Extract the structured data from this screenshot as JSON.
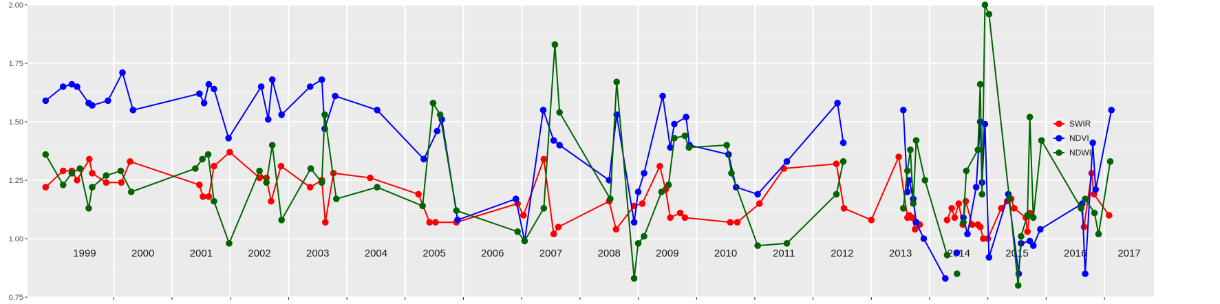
{
  "chart_data": {
    "type": "line",
    "title": "",
    "xlabel": "",
    "ylabel": "",
    "xlim": [
      1998.52,
      2017.85
    ],
    "ylim": [
      0.75,
      2.0
    ],
    "yticks": [
      "0.75",
      "1.00",
      "1.25",
      "1.50",
      "1.75",
      "2.00"
    ],
    "year_labels": [
      "1999",
      "2000",
      "2001",
      "2002",
      "2003",
      "2004",
      "2005",
      "2006",
      "2007",
      "2008",
      "2009",
      "2010",
      "2011",
      "2012",
      "2013",
      "2014",
      "2015",
      "2016",
      "2017"
    ],
    "grid": true,
    "legend_position": "right",
    "series": [
      {
        "name": "SWIR",
        "color": "#ff0000",
        "segments": [
          [
            [
              1998.83,
              1.22
            ],
            [
              1999.13,
              1.29
            ],
            [
              1999.28,
              1.29
            ],
            [
              1999.37,
              1.25
            ],
            [
              1999.58,
              1.34
            ],
            [
              1999.63,
              1.28
            ],
            [
              1999.87,
              1.24
            ],
            [
              2000.13,
              1.24
            ],
            [
              2000.28,
              1.33
            ],
            [
              2001.47,
              1.23
            ],
            [
              2001.53,
              1.18
            ],
            [
              2001.63,
              1.18
            ],
            [
              2001.72,
              1.31
            ],
            [
              2001.99,
              1.37
            ],
            [
              2002.5,
              1.26
            ],
            [
              2002.62,
              1.26
            ],
            [
              2002.7,
              1.16
            ],
            [
              2002.87,
              1.31
            ],
            [
              2003.37,
              1.22
            ],
            [
              2003.57,
              1.25
            ],
            [
              2003.63,
              1.07
            ],
            [
              2003.77,
              1.28
            ],
            [
              2004.4,
              1.26
            ],
            [
              2005.23,
              1.19
            ],
            [
              2005.42,
              1.07
            ],
            [
              2005.52,
              1.07
            ],
            [
              2005.88,
              1.07
            ],
            [
              2006.93,
              1.15
            ],
            [
              2007.03,
              1.1
            ],
            [
              2007.38,
              1.34
            ],
            [
              2007.55,
              1.02
            ],
            [
              2007.63,
              1.05
            ],
            [
              2008.5,
              1.16
            ],
            [
              2008.62,
              1.04
            ],
            [
              2008.93,
              1.14
            ],
            [
              2009.07,
              1.15
            ],
            [
              2009.37,
              1.31
            ],
            [
              2009.47,
              1.21
            ],
            [
              2009.55,
              1.09
            ],
            [
              2009.72,
              1.11
            ],
            [
              2009.8,
              1.09
            ],
            [
              2010.58,
              1.07
            ],
            [
              2010.7,
              1.07
            ],
            [
              2011.08,
              1.15
            ],
            [
              2011.5,
              1.3
            ],
            [
              2012.4,
              1.32
            ],
            [
              2012.53,
              1.13
            ],
            [
              2013.0,
              1.08
            ],
            [
              2013.47,
              1.35
            ],
            [
              2013.62,
              1.09
            ],
            [
              2013.65,
              1.1
            ],
            [
              2013.7,
              1.09
            ],
            [
              2013.75,
              1.04
            ],
            [
              2013.83,
              1.06
            ]
          ],
          [
            [
              2014.3,
              1.08
            ],
            [
              2014.38,
              1.13
            ],
            [
              2014.43,
              1.09
            ],
            [
              2014.5,
              1.15
            ],
            [
              2014.57,
              1.06
            ],
            [
              2014.62,
              1.16
            ],
            [
              2014.73,
              1.06
            ],
            [
              2014.83,
              1.06
            ],
            [
              2014.87,
              1.05
            ],
            [
              2014.92,
              1.0
            ],
            [
              2015.0,
              1.0
            ],
            [
              2015.23,
              1.13
            ],
            [
              2015.33,
              1.16
            ],
            [
              2015.4,
              1.17
            ],
            [
              2015.45,
              1.13
            ],
            [
              2015.65,
              1.09
            ],
            [
              2015.68,
              1.03
            ],
            [
              2015.72,
              1.11
            ]
          ],
          [
            [
              2016.6,
              1.14
            ],
            [
              2016.65,
              1.05
            ],
            [
              2016.78,
              1.28
            ],
            [
              2016.82,
              1.19
            ],
            [
              2017.08,
              1.1
            ]
          ]
        ]
      },
      {
        "name": "NDVI",
        "color": "#0000ff",
        "segments": [
          [
            [
              1998.83,
              1.59
            ],
            [
              1999.13,
              1.65
            ],
            [
              1999.28,
              1.66
            ],
            [
              1999.37,
              1.65
            ],
            [
              1999.57,
              1.58
            ],
            [
              1999.63,
              1.57
            ],
            [
              1999.9,
              1.59
            ],
            [
              2000.15,
              1.71
            ],
            [
              2000.33,
              1.55
            ],
            [
              2001.47,
              1.62
            ],
            [
              2001.55,
              1.58
            ],
            [
              2001.63,
              1.66
            ],
            [
              2001.72,
              1.64
            ],
            [
              2001.97,
              1.43
            ],
            [
              2002.53,
              1.65
            ],
            [
              2002.65,
              1.51
            ],
            [
              2002.72,
              1.68
            ],
            [
              2002.88,
              1.53
            ],
            [
              2003.37,
              1.65
            ],
            [
              2003.57,
              1.68
            ],
            [
              2003.62,
              1.47
            ],
            [
              2003.8,
              1.61
            ],
            [
              2004.52,
              1.55
            ],
            [
              2005.32,
              1.34
            ],
            [
              2005.55,
              1.46
            ],
            [
              2005.63,
              1.51
            ],
            [
              2005.9,
              1.08
            ],
            [
              2006.9,
              1.17
            ],
            [
              2007.05,
              0.99
            ],
            [
              2007.37,
              1.55
            ],
            [
              2007.55,
              1.42
            ],
            [
              2007.65,
              1.4
            ],
            [
              2008.5,
              1.25
            ],
            [
              2008.63,
              1.53
            ],
            [
              2008.93,
              1.07
            ],
            [
              2009.0,
              1.2
            ],
            [
              2009.1,
              1.28
            ],
            [
              2009.42,
              1.61
            ],
            [
              2009.55,
              1.39
            ],
            [
              2009.62,
              1.49
            ],
            [
              2009.82,
              1.52
            ],
            [
              2009.88,
              1.4
            ],
            [
              2010.55,
              1.36
            ],
            [
              2010.68,
              1.22
            ],
            [
              2011.05,
              1.19
            ],
            [
              2011.55,
              1.33
            ],
            [
              2012.42,
              1.58
            ],
            [
              2012.52,
              1.41
            ]
          ],
          [
            [
              2013.55,
              1.55
            ],
            [
              2013.62,
              1.2
            ],
            [
              2013.65,
              1.25
            ],
            [
              2013.72,
              1.17
            ],
            [
              2013.77,
              1.07
            ],
            [
              2013.9,
              1.0
            ],
            [
              2014.27,
              0.83
            ]
          ],
          [
            [
              2014.47,
              0.94
            ]
          ],
          [
            [
              2014.58,
              1.09
            ],
            [
              2014.65,
              1.02
            ],
            [
              2014.8,
              1.22
            ],
            [
              2014.87,
              1.5
            ],
            [
              2014.9,
              1.24
            ],
            [
              2014.95,
              1.49
            ],
            [
              2015.02,
              0.92
            ],
            [
              2015.35,
              1.19
            ],
            [
              2015.53,
              0.85
            ],
            [
              2015.57,
              0.98
            ],
            [
              2015.72,
              0.99
            ],
            [
              2015.78,
              0.97
            ],
            [
              2015.9,
              1.04
            ],
            [
              2016.62,
              1.15
            ],
            [
              2016.67,
              0.85
            ],
            [
              2016.8,
              1.41
            ],
            [
              2016.85,
              1.21
            ],
            [
              2017.12,
              1.55
            ]
          ]
        ]
      },
      {
        "name": "NDWI",
        "color": "#006400",
        "segments": [
          [
            [
              1998.83,
              1.36
            ],
            [
              1999.13,
              1.23
            ],
            [
              1999.28,
              1.28
            ],
            [
              1999.42,
              1.3
            ],
            [
              1999.57,
              1.13
            ],
            [
              1999.63,
              1.22
            ],
            [
              1999.87,
              1.27
            ],
            [
              2000.12,
              1.29
            ],
            [
              2000.3,
              1.2
            ],
            [
              2001.4,
              1.3
            ],
            [
              2001.52,
              1.34
            ],
            [
              2001.62,
              1.36
            ],
            [
              2001.72,
              1.16
            ],
            [
              2001.98,
              0.98
            ],
            [
              2002.5,
              1.29
            ],
            [
              2002.62,
              1.24
            ],
            [
              2002.72,
              1.4
            ],
            [
              2002.88,
              1.08
            ],
            [
              2003.38,
              1.3
            ],
            [
              2003.57,
              1.24
            ],
            [
              2003.62,
              1.53
            ],
            [
              2003.82,
              1.17
            ],
            [
              2004.52,
              1.22
            ],
            [
              2005.3,
              1.14
            ],
            [
              2005.48,
              1.58
            ],
            [
              2005.6,
              1.53
            ],
            [
              2005.88,
              1.12
            ],
            [
              2006.93,
              1.03
            ],
            [
              2007.05,
              0.99
            ],
            [
              2007.38,
              1.13
            ],
            [
              2007.57,
              1.83
            ],
            [
              2007.65,
              1.54
            ],
            [
              2008.52,
              1.17
            ],
            [
              2008.63,
              1.67
            ],
            [
              2008.93,
              0.83
            ],
            [
              2009.0,
              0.98
            ],
            [
              2009.1,
              1.01
            ],
            [
              2009.4,
              1.2
            ],
            [
              2009.52,
              1.23
            ],
            [
              2009.62,
              1.43
            ],
            [
              2009.8,
              1.44
            ],
            [
              2009.87,
              1.39
            ],
            [
              2010.52,
              1.4
            ],
            [
              2010.6,
              1.28
            ],
            [
              2011.05,
              0.97
            ],
            [
              2011.55,
              0.98
            ],
            [
              2012.4,
              1.19
            ],
            [
              2012.52,
              1.33
            ]
          ],
          [
            [
              2013.55,
              1.13
            ],
            [
              2013.62,
              1.29
            ],
            [
              2013.67,
              1.38
            ],
            [
              2013.72,
              1.15
            ],
            [
              2013.77,
              1.42
            ],
            [
              2013.92,
              1.25
            ],
            [
              2014.3,
              0.93
            ]
          ],
          [
            [
              2014.47,
              0.85
            ]
          ],
          [
            [
              2014.58,
              1.07
            ],
            [
              2014.63,
              1.29
            ],
            [
              2014.83,
              1.38
            ],
            [
              2014.87,
              1.66
            ],
            [
              2014.9,
              1.19
            ],
            [
              2014.95,
              2.0
            ],
            [
              2015.02,
              1.96
            ],
            [
              2015.37,
              1.17
            ],
            [
              2015.52,
              0.8
            ],
            [
              2015.57,
              1.01
            ],
            [
              2015.68,
              1.1
            ],
            [
              2015.72,
              1.52
            ],
            [
              2015.78,
              1.09
            ],
            [
              2015.92,
              1.42
            ],
            [
              2016.6,
              1.13
            ],
            [
              2016.67,
              1.17
            ],
            [
              2016.83,
              1.11
            ],
            [
              2016.9,
              1.02
            ],
            [
              2017.1,
              1.33
            ]
          ]
        ]
      }
    ]
  }
}
